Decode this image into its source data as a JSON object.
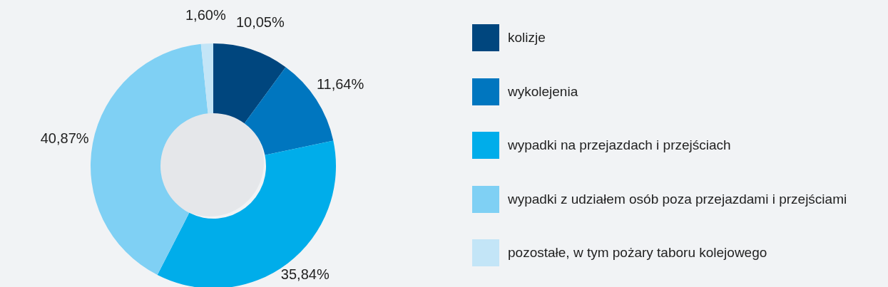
{
  "chart_data": {
    "type": "donut",
    "categories": [
      "kolizje",
      "wykolejenia",
      "wypadki na przejazdach i przejściach",
      "wypadki z udziałem osób poza przejazdami i przejściami",
      "pozostałe, w tym pożary taboru kolejowego"
    ],
    "values": [
      10.05,
      11.64,
      35.84,
      40.87,
      1.6
    ],
    "colors": [
      "#00467e",
      "#0076bf",
      "#00adea",
      "#7fd0f4",
      "#c3e5f7"
    ],
    "value_labels": [
      "10,05%",
      "11,64%",
      "35,84%",
      "40,87%",
      "1,60%"
    ],
    "legend": "right"
  }
}
